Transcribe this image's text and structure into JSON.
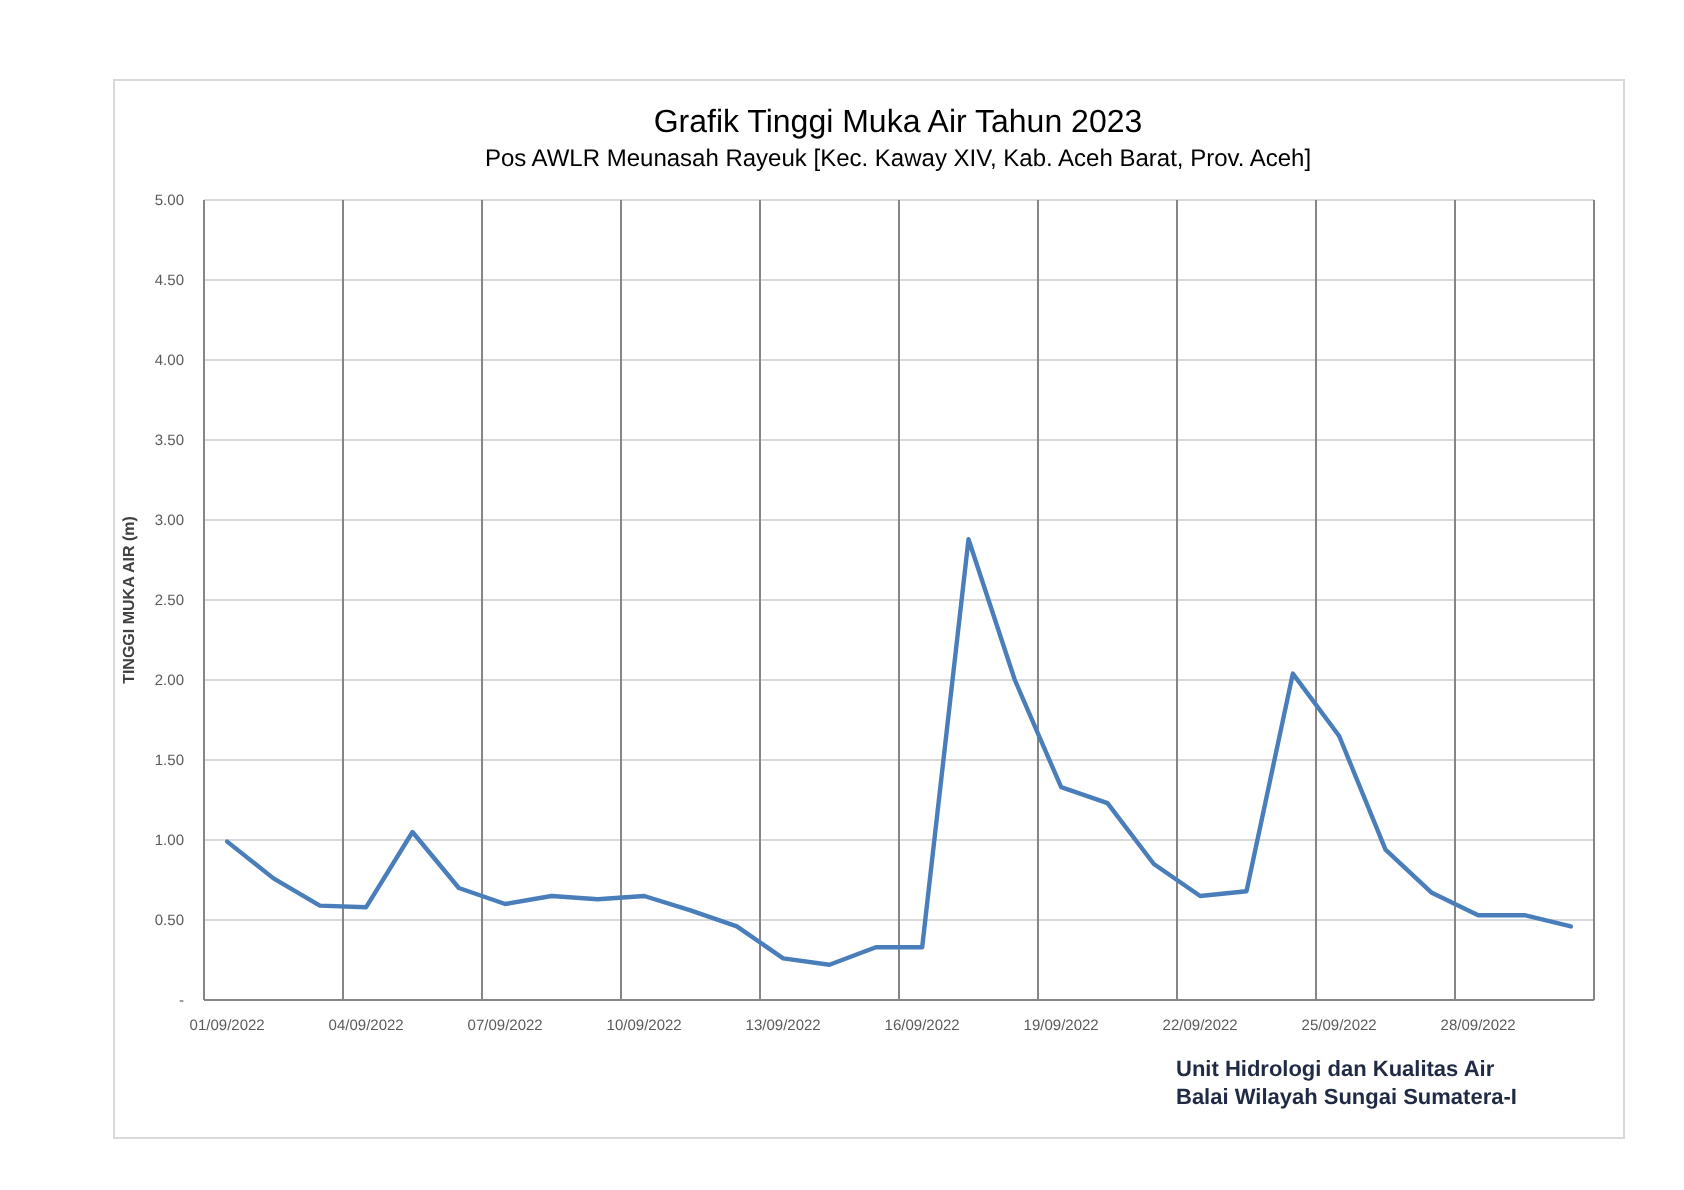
{
  "chart_data": {
    "type": "line",
    "title": "Grafik Tinggi Muka Air Tahun 2023",
    "subtitle": "Pos AWLR Meunasah Rayeuk [Kec. Kaway XIV, Kab. Aceh Barat, Prov. Aceh]",
    "ylabel": "TINGGI MUKA AIR (m)",
    "categories": [
      "01/09/2022",
      null,
      null,
      "04/09/2022",
      null,
      null,
      "07/09/2022",
      null,
      null,
      "10/09/2022",
      null,
      null,
      "13/09/2022",
      null,
      null,
      "16/09/2022",
      null,
      null,
      "19/09/2022",
      null,
      null,
      "22/09/2022",
      null,
      null,
      "25/09/2022",
      null,
      null,
      "28/09/2022",
      null,
      null
    ],
    "series": [
      {
        "color": "#4a7ebb",
        "values": [
          0.99,
          0.76,
          0.59,
          0.58,
          1.05,
          0.7,
          0.6,
          0.65,
          0.63,
          0.65,
          0.56,
          0.46,
          0.26,
          0.22,
          0.33,
          0.33,
          2.88,
          2.0,
          1.33,
          1.23,
          0.85,
          0.65,
          0.68,
          2.04,
          1.65,
          0.94,
          0.67,
          0.53,
          0.53,
          0.46
        ]
      }
    ],
    "ylim": [
      0,
      5
    ],
    "yticks": [
      {
        "value": 0,
        "label": "-"
      },
      {
        "value": 0.5,
        "label": "0.50"
      },
      {
        "value": 1,
        "label": "1.00"
      },
      {
        "value": 1.5,
        "label": "1.50"
      },
      {
        "value": 2,
        "label": "2.00"
      },
      {
        "value": 2.5,
        "label": "2.50"
      },
      {
        "value": 3,
        "label": "3.00"
      },
      {
        "value": 3.5,
        "label": "3.50"
      },
      {
        "value": 4,
        "label": "4.00"
      },
      {
        "value": 4.5,
        "label": "4.50"
      },
      {
        "value": 5,
        "label": "5.00"
      }
    ],
    "grid": true,
    "marker": "none",
    "line_style": "solid",
    "annotations": [
      "Unit Hidrologi dan Kualitas Air",
      "Balai Wilayah Sungai Sumatera-I"
    ]
  }
}
